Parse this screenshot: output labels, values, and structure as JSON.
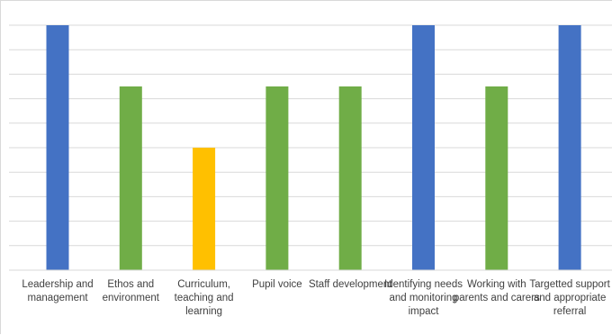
{
  "chart_data": {
    "type": "bar",
    "categories": [
      "Leadership and management",
      "Ethos and environment",
      "Curriculum, teaching and learning",
      "Pupil voice",
      "Staff development",
      "Identifying needs and monitoring impact",
      "Working with parents and carers",
      "Targetted support and appropriate referral"
    ],
    "values": [
      10,
      7.5,
      5,
      7.5,
      7.5,
      10,
      7.5,
      10
    ],
    "colors": [
      "#4472C4",
      "#70AD47",
      "#FFC000",
      "#70AD47",
      "#70AD47",
      "#4472C4",
      "#70AD47",
      "#4472C4"
    ],
    "ylim": [
      0,
      10
    ],
    "grid": true,
    "gridline_count": 10,
    "gridline_color": "#d9d9d9"
  }
}
